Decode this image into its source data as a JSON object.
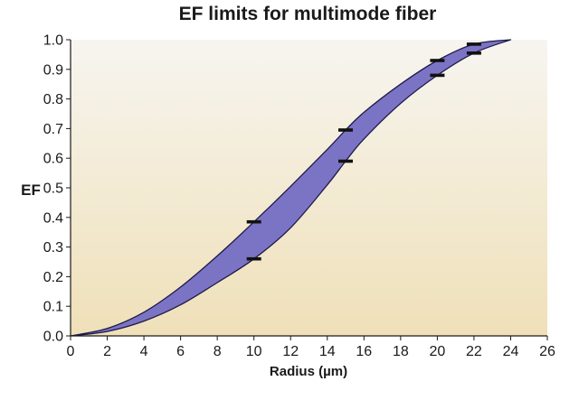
{
  "chart_data": {
    "type": "area",
    "title": "EF limits for multimode fiber",
    "xlabel": "Radius (µm)",
    "ylabel": "EF",
    "xlim": [
      0,
      26
    ],
    "ylim": [
      0,
      1
    ],
    "x_ticks": [
      "0",
      "2",
      "4",
      "6",
      "8",
      "10",
      "12",
      "14",
      "16",
      "18",
      "20",
      "22",
      "24",
      "26"
    ],
    "y_ticks": [
      "0.0",
      "0.1",
      "0.2",
      "0.3",
      "0.4",
      "0.5",
      "0.6",
      "0.7",
      "0.8",
      "0.9",
      "1.0"
    ],
    "grid": false,
    "legend": "none",
    "band": {
      "upper": {
        "x": [
          0,
          2,
          4,
          6,
          8,
          10,
          12,
          14,
          15,
          16,
          18,
          20,
          22,
          24
        ],
        "y": [
          0.0,
          0.025,
          0.08,
          0.165,
          0.27,
          0.385,
          0.505,
          0.63,
          0.695,
          0.755,
          0.85,
          0.93,
          0.985,
          1.0
        ]
      },
      "lower": {
        "x": [
          0,
          2,
          4,
          6,
          8,
          10,
          12,
          14,
          15,
          16,
          18,
          20,
          22,
          24
        ],
        "y": [
          0.0,
          0.015,
          0.05,
          0.105,
          0.18,
          0.26,
          0.365,
          0.51,
          0.59,
          0.665,
          0.785,
          0.88,
          0.955,
          1.0
        ]
      }
    },
    "limit_markers": [
      {
        "x": 10,
        "y": 0.385
      },
      {
        "x": 10,
        "y": 0.26
      },
      {
        "x": 15,
        "y": 0.695
      },
      {
        "x": 15,
        "y": 0.59
      },
      {
        "x": 20,
        "y": 0.93
      },
      {
        "x": 20,
        "y": 0.88
      },
      {
        "x": 22,
        "y": 0.985
      },
      {
        "x": 22,
        "y": 0.955
      }
    ]
  },
  "colors": {
    "band_fill": "#7b74c4",
    "band_stroke": "#1e1a4a",
    "plot_bg_top": "#f7f5f0",
    "plot_bg_bottom": "#efe0b8",
    "marker": "#111111"
  }
}
